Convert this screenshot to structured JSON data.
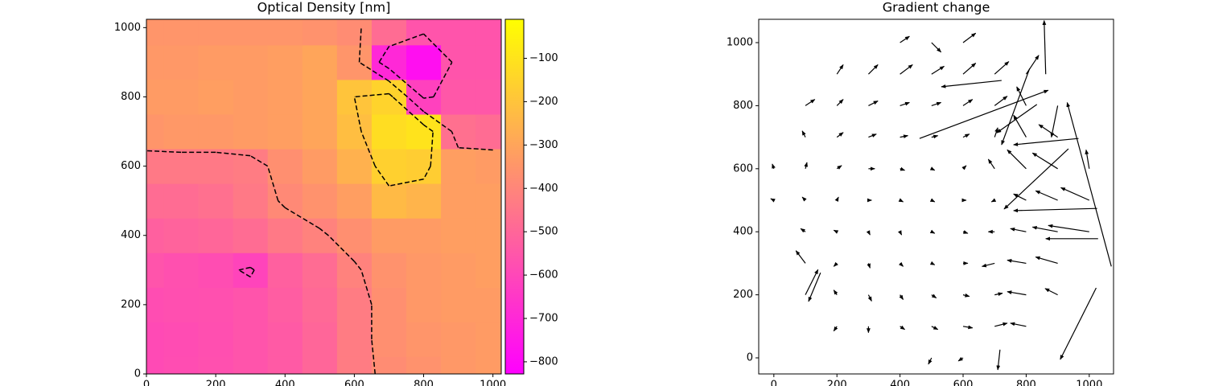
{
  "chart_data": [
    {
      "type": "heatmap",
      "title": "Optical Density [nm]",
      "x": [
        0,
        100,
        200,
        300,
        400,
        500,
        600,
        700,
        800,
        900,
        1000
      ],
      "y": [
        0,
        100,
        200,
        300,
        400,
        500,
        600,
        700,
        800,
        900,
        1000
      ],
      "z": [
        [
          -590,
          -580,
          -570,
          -560,
          -540,
          -500,
          -430,
          -380,
          -360,
          -340,
          -330
        ],
        [
          -590,
          -585,
          -575,
          -560,
          -540,
          -500,
          -430,
          -370,
          -350,
          -340,
          -330
        ],
        [
          -580,
          -575,
          -570,
          -560,
          -530,
          -490,
          -430,
          -370,
          -340,
          -330,
          -330
        ],
        [
          -560,
          -570,
          -580,
          -610,
          -520,
          -480,
          -410,
          -360,
          -340,
          -330,
          -320
        ],
        [
          -520,
          -510,
          -500,
          -480,
          -440,
          -410,
          -370,
          -330,
          -330,
          -320,
          -320
        ],
        [
          -480,
          -480,
          -470,
          -440,
          -390,
          -360,
          -320,
          -230,
          -250,
          -320,
          -320
        ],
        [
          -440,
          -440,
          -440,
          -430,
          -370,
          -330,
          -260,
          -160,
          -170,
          -320,
          -330
        ],
        [
          -350,
          -340,
          -340,
          -330,
          -320,
          -300,
          -220,
          -120,
          -100,
          -470,
          -480
        ],
        [
          -330,
          -330,
          -320,
          -330,
          -320,
          -300,
          -200,
          -150,
          -620,
          -550,
          -550
        ],
        [
          -340,
          -340,
          -330,
          -330,
          -320,
          -300,
          -350,
          -700,
          -780,
          -560,
          -560
        ],
        [
          -350,
          -350,
          -350,
          -350,
          -350,
          -360,
          -380,
          -480,
          -560,
          -560,
          -560
        ]
      ],
      "colormap": "spring",
      "clim": [
        -828,
        -10
      ],
      "cticks": [
        {
          "value": -100,
          "label": "−100"
        },
        {
          "value": -200,
          "label": "−200"
        },
        {
          "value": -300,
          "label": "−300"
        },
        {
          "value": -400,
          "label": "−400"
        },
        {
          "value": -500,
          "label": "−500"
        },
        {
          "value": -600,
          "label": "−600"
        },
        {
          "value": -700,
          "label": "−700"
        },
        {
          "value": -800,
          "label": "−800"
        }
      ],
      "contour_levels": [
        -600,
        -400,
        -200
      ],
      "contour_color": "#000000",
      "xlim": [
        0,
        1024
      ],
      "ylim": [
        0,
        1024
      ],
      "xticks": [
        0,
        200,
        400,
        600,
        800,
        1000
      ],
      "yticks": [
        0,
        200,
        400,
        600,
        800,
        1000
      ]
    },
    {
      "type": "quiver",
      "title": "Gradient change",
      "color": "#000000",
      "x": [
        500,
        600,
        200,
        300,
        400,
        500,
        600,
        700,
        800,
        100,
        200,
        300,
        400,
        500,
        600,
        700,
        800,
        900,
        100,
        200,
        300,
        400,
        500,
        600,
        700,
        800,
        900,
        100,
        200,
        300,
        400,
        500,
        600,
        700,
        800,
        900,
        1000,
        0,
        100,
        200,
        300,
        400,
        500,
        600,
        700,
        800,
        900,
        1000,
        0,
        100,
        200,
        300,
        400,
        500,
        600,
        700,
        800,
        900,
        1000,
        100,
        200,
        300,
        400,
        500,
        600,
        700,
        800,
        900,
        100,
        200,
        300,
        400,
        500,
        600,
        700,
        800,
        900,
        200,
        300,
        400,
        500,
        600,
        700,
        800,
        400,
        500,
        600,
        462,
        862,
        1070,
        1025,
        966,
        1022,
        722,
        834,
        934,
        811,
        148,
        1028,
        717
      ],
      "y": [
        0,
        0,
        100,
        100,
        100,
        100,
        100,
        100,
        100,
        200,
        200,
        200,
        200,
        200,
        200,
        200,
        200,
        200,
        300,
        300,
        300,
        300,
        300,
        300,
        300,
        300,
        300,
        400,
        400,
        400,
        400,
        400,
        400,
        400,
        400,
        400,
        400,
        500,
        500,
        500,
        500,
        500,
        500,
        500,
        500,
        500,
        500,
        500,
        600,
        600,
        600,
        600,
        600,
        600,
        600,
        600,
        600,
        600,
        600,
        700,
        700,
        700,
        700,
        700,
        700,
        700,
        700,
        700,
        800,
        800,
        800,
        800,
        800,
        800,
        800,
        800,
        800,
        900,
        900,
        900,
        900,
        900,
        900,
        900,
        1000,
        1000,
        1000,
        696,
        900,
        290,
        474,
        696,
        222,
        880,
        804,
        663,
        918,
        270,
        378,
        26
      ],
      "u": [
        -10,
        -15,
        -10,
        0,
        15,
        20,
        30,
        40,
        -50,
        40,
        -10,
        10,
        10,
        15,
        20,
        25,
        -60,
        -40,
        -30,
        -10,
        5,
        10,
        10,
        15,
        -40,
        -60,
        -70,
        -15,
        -10,
        5,
        5,
        10,
        15,
        -20,
        -50,
        -80,
        -130,
        -10,
        -10,
        5,
        10,
        10,
        10,
        10,
        -10,
        -40,
        -70,
        -90,
        -5,
        5,
        15,
        20,
        15,
        10,
        10,
        -20,
        -60,
        -80,
        -10,
        -10,
        20,
        25,
        25,
        20,
        20,
        10,
        -40,
        -60,
        30,
        20,
        30,
        30,
        30,
        30,
        40,
        -30,
        -20,
        20,
        30,
        40,
        40,
        40,
        45,
        40,
        30,
        30,
        40,
        408,
        -5,
        -140,
        -265,
        -206,
        -114,
        -191,
        -127,
        -204,
        -89,
        -38,
        -166,
        -7
      ],
      "v": [
        -20,
        -10,
        -15,
        -20,
        -10,
        -10,
        -5,
        10,
        10,
        80,
        15,
        -20,
        -15,
        -10,
        -5,
        5,
        10,
        20,
        40,
        -10,
        -15,
        -10,
        -5,
        0,
        -10,
        10,
        20,
        10,
        5,
        -10,
        -10,
        -5,
        -5,
        0,
        10,
        15,
        20,
        5,
        10,
        10,
        0,
        -5,
        -5,
        0,
        -5,
        20,
        30,
        40,
        15,
        20,
        10,
        0,
        -5,
        -5,
        10,
        30,
        60,
        50,
        60,
        20,
        15,
        10,
        5,
        5,
        10,
        30,
        70,
        40,
        20,
        20,
        15,
        10,
        10,
        20,
        30,
        60,
        -100,
        30,
        30,
        30,
        25,
        35,
        40,
        60,
        20,
        -30,
        30,
        153,
        170,
        520,
        -7,
        -20,
        -227,
        -20,
        -90,
        -191,
        -242,
        -91,
        0,
        -64
      ],
      "xlim": [
        -48,
        1077
      ],
      "ylim": [
        -51,
        1074
      ],
      "xticks": [
        0,
        200,
        400,
        600,
        800,
        1000
      ],
      "yticks": [
        0,
        200,
        400,
        600,
        800,
        1000
      ]
    }
  ]
}
